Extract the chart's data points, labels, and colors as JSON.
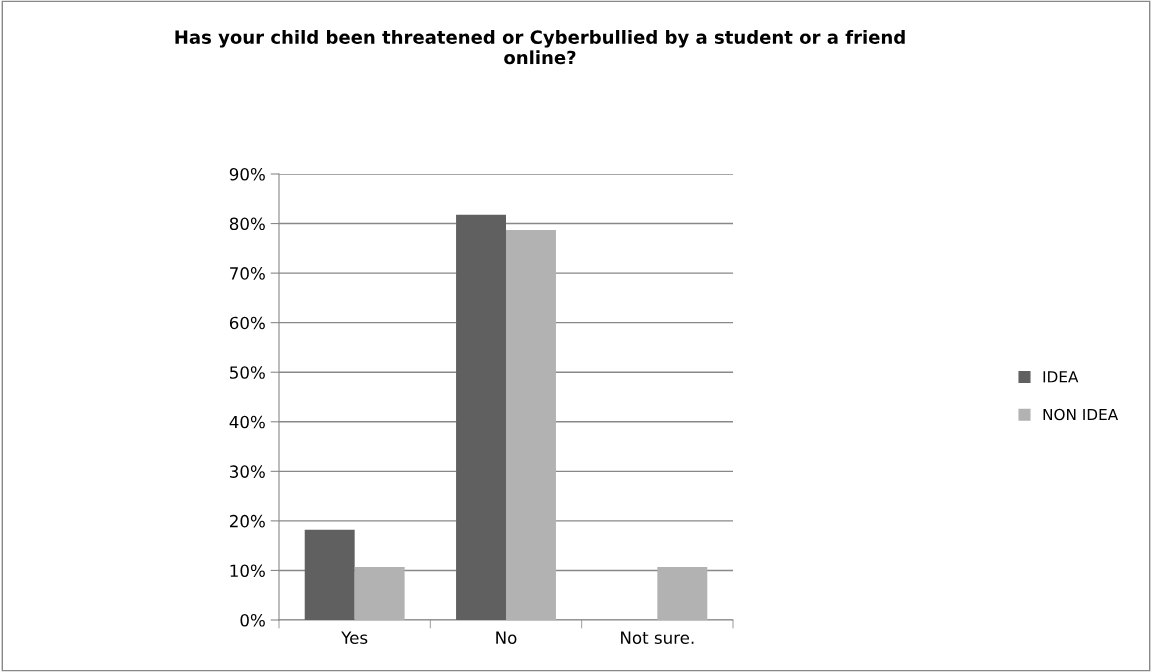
{
  "chart_data": {
    "type": "bar",
    "title": "Has your child been threatened or Cyberbullied by a student or a friend\nonline?",
    "categories": [
      "Yes",
      "No",
      "Not sure."
    ],
    "series": [
      {
        "name": "IDEA",
        "color": "#606060",
        "values": [
          18.2,
          81.8,
          0
        ]
      },
      {
        "name": "NON IDEA",
        "color": "#b2b2b2",
        "values": [
          10.7,
          78.7,
          10.7
        ]
      }
    ],
    "ylim": [
      0,
      90
    ],
    "yticks": [
      {
        "value": 0,
        "label": "0%"
      },
      {
        "value": 10,
        "label": "10%"
      },
      {
        "value": 20,
        "label": "20%"
      },
      {
        "value": 30,
        "label": "30%"
      },
      {
        "value": 40,
        "label": "40%"
      },
      {
        "value": 50,
        "label": "50%"
      },
      {
        "value": 60,
        "label": "60%"
      },
      {
        "value": 70,
        "label": "70%"
      },
      {
        "value": 80,
        "label": "80%"
      },
      {
        "value": 90,
        "label": "90%"
      }
    ],
    "grid": "y",
    "legend": "right"
  }
}
